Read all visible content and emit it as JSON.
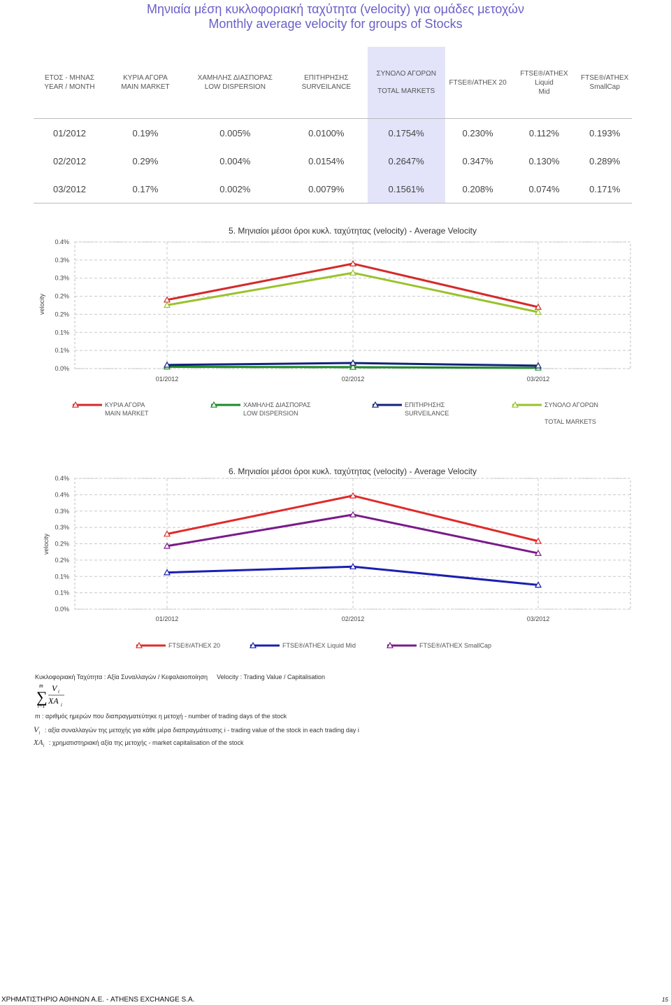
{
  "title_gr": "Μηνιαία μέση κυκλοφοριακή ταχύτητα (velocity) για ομάδες μετοχών",
  "title_en": "Monthly average velocity for groups of Stocks",
  "table": {
    "headers": [
      {
        "lines": [
          "ΕΤΟΣ - ΜΗΝΑΣ",
          "YEAR / MONTH"
        ]
      },
      {
        "lines": [
          "ΚΥΡΙΑ ΑΓΟΡΑ",
          "MAIN MARKET"
        ]
      },
      {
        "lines": [
          "ΧΑΜΗΛΗΣ ΔΙΑΣΠΟΡΑΣ",
          "LOW DISPERSION"
        ]
      },
      {
        "lines": [
          "ΕΠΙΤΗΡΗΣΗΣ",
          "SURVEILANCE"
        ]
      },
      {
        "lines": [
          "ΣΥΝΟΛΟ ΑΓΟΡΩΝ",
          "TOTAL MARKETS"
        ]
      },
      {
        "lines": [
          "FTSE®/ATHEX 20"
        ]
      },
      {
        "lines": [
          "FTSE®/ATHEX Liquid",
          "Mid"
        ]
      },
      {
        "lines": [
          "FTSE®/ATHEX",
          "SmallCap"
        ]
      }
    ],
    "rows": [
      [
        "01/2012",
        "0.19%",
        "0.005%",
        "0.0100%",
        "0.1754%",
        "0.230%",
        "0.112%",
        "0.193%"
      ],
      [
        "02/2012",
        "0.29%",
        "0.004%",
        "0.0154%",
        "0.2647%",
        "0.347%",
        "0.130%",
        "0.289%"
      ],
      [
        "03/2012",
        "0.17%",
        "0.002%",
        "0.0079%",
        "0.1561%",
        "0.208%",
        "0.074%",
        "0.171%"
      ]
    ]
  },
  "chart_data": [
    {
      "type": "line",
      "title": "5. Μηνιαίοι μέσοι όροι κυκλ. ταχύτητας (velocity) - Average Velocity",
      "ylabel": "velocity",
      "categories": [
        "01/2012",
        "02/2012",
        "03/2012"
      ],
      "ylim": [
        0,
        0.35
      ],
      "yticks": [
        0,
        0.05,
        0.1,
        0.15,
        0.2,
        0.25,
        0.3,
        0.35
      ],
      "ytick_labels": [
        "0.0%",
        "0.1%",
        "0.1%",
        "0.2%",
        "0.2%",
        "0.3%",
        "0.3%",
        "0.4%"
      ],
      "grid": true,
      "marker": "triangle",
      "series": [
        {
          "name": "ΚΥΡΙΑ ΑΓΟΡΑ MAIN MARKET",
          "lines": [
            "ΚΥΡΙΑ ΑΓΟΡΑ",
            "MAIN MARKET"
          ],
          "color": "#d42a2a",
          "values": [
            0.19,
            0.29,
            0.17
          ]
        },
        {
          "name": "ΧΑΜΗΛΗΣ ΔΙΑΣΠΟΡΑΣ LOW DISPERSION",
          "lines": [
            "ΧΑΜΗΛΗΣ ΔΙΑΣΠΟΡΑΣ",
            "LOW DISPERSION"
          ],
          "color": "#1f8a2a",
          "values": [
            0.005,
            0.004,
            0.002
          ]
        },
        {
          "name": "ΕΠΙΤΗΡΗΣΗΣ SURVEILANCE",
          "lines": [
            "ΕΠΙΤΗΡΗΣΗΣ",
            "SURVEILANCE"
          ],
          "color": "#12237a",
          "values": [
            0.01,
            0.0154,
            0.0079
          ]
        },
        {
          "name": "ΣΥΝΟΛΟ ΑΓΟΡΩΝ TOTAL MARKETS",
          "lines": [
            "ΣΥΝΟΛΟ ΑΓΟΡΩΝ",
            "",
            "TOTAL MARKETS"
          ],
          "color": "#9ac22c",
          "values": [
            0.1754,
            0.2647,
            0.1561
          ]
        }
      ]
    },
    {
      "type": "line",
      "title": "6. Μηνιαίοι μέσοι όροι κυκλ. ταχύτητας (velocity) - Average Velocity",
      "ylabel": "velocity",
      "categories": [
        "01/2012",
        "02/2012",
        "03/2012"
      ],
      "ylim": [
        0,
        0.4
      ],
      "yticks": [
        0,
        0.05,
        0.1,
        0.15,
        0.2,
        0.25,
        0.3,
        0.35,
        0.4
      ],
      "ytick_labels": [
        "0.0%",
        "0.1%",
        "0.1%",
        "0.2%",
        "0.2%",
        "0.3%",
        "0.3%",
        "0.4%",
        "0.4%"
      ],
      "grid": true,
      "marker": "triangle",
      "series": [
        {
          "name": "FTSE®/ATHEX 20",
          "lines": [
            "FTSE®/ATHEX 20"
          ],
          "color": "#e02a2a",
          "values": [
            0.23,
            0.347,
            0.208
          ]
        },
        {
          "name": "FTSE®/ATHEX Liquid Mid",
          "lines": [
            "FTSE®/ATHEX Liquid Mid"
          ],
          "color": "#1a1fb0",
          "values": [
            0.112,
            0.13,
            0.074
          ]
        },
        {
          "name": "FTSE®/ATHEX SmallCap",
          "lines": [
            "FTSE®/ATHEX SmallCap"
          ],
          "color": "#7a1a8a",
          "values": [
            0.193,
            0.289,
            0.171
          ]
        }
      ]
    }
  ],
  "definition_gr": "Κυκλοφοριακή Ταχύτητα : Αξία Συναλλαγών / Κεφαλαιοποίηση",
  "definition_en": "Velocity : Trading Value / Capitalisation",
  "formula": {
    "m": "m",
    "i": "i=1",
    "num": "V",
    "den": "XA",
    "sub": "i"
  },
  "notes": [
    {
      "sym": "m",
      "text": ": αριθμός ημερών που διαπραγματεύτηκε η μετοχή - number of trading days of the stock"
    },
    {
      "sym": "V",
      "sub": "i",
      "text": ": αξία συναλλαγών της μετοχής για κάθε μέρα διαπραγμάτευσης i - trading value of the stock in each trading day i"
    },
    {
      "sym": "XA",
      "sub": "i",
      "text": ": χρηματιστηριακή αξία της μετοχής - market capitalisation of the stock"
    }
  ],
  "footer": "ΧΡΗΜΑΤΙΣΤΗΡΙΟ ΑΘΗΝΩΝ Α.Ε. - ATHENS EXCHANGE S.A.",
  "page_number": "15"
}
